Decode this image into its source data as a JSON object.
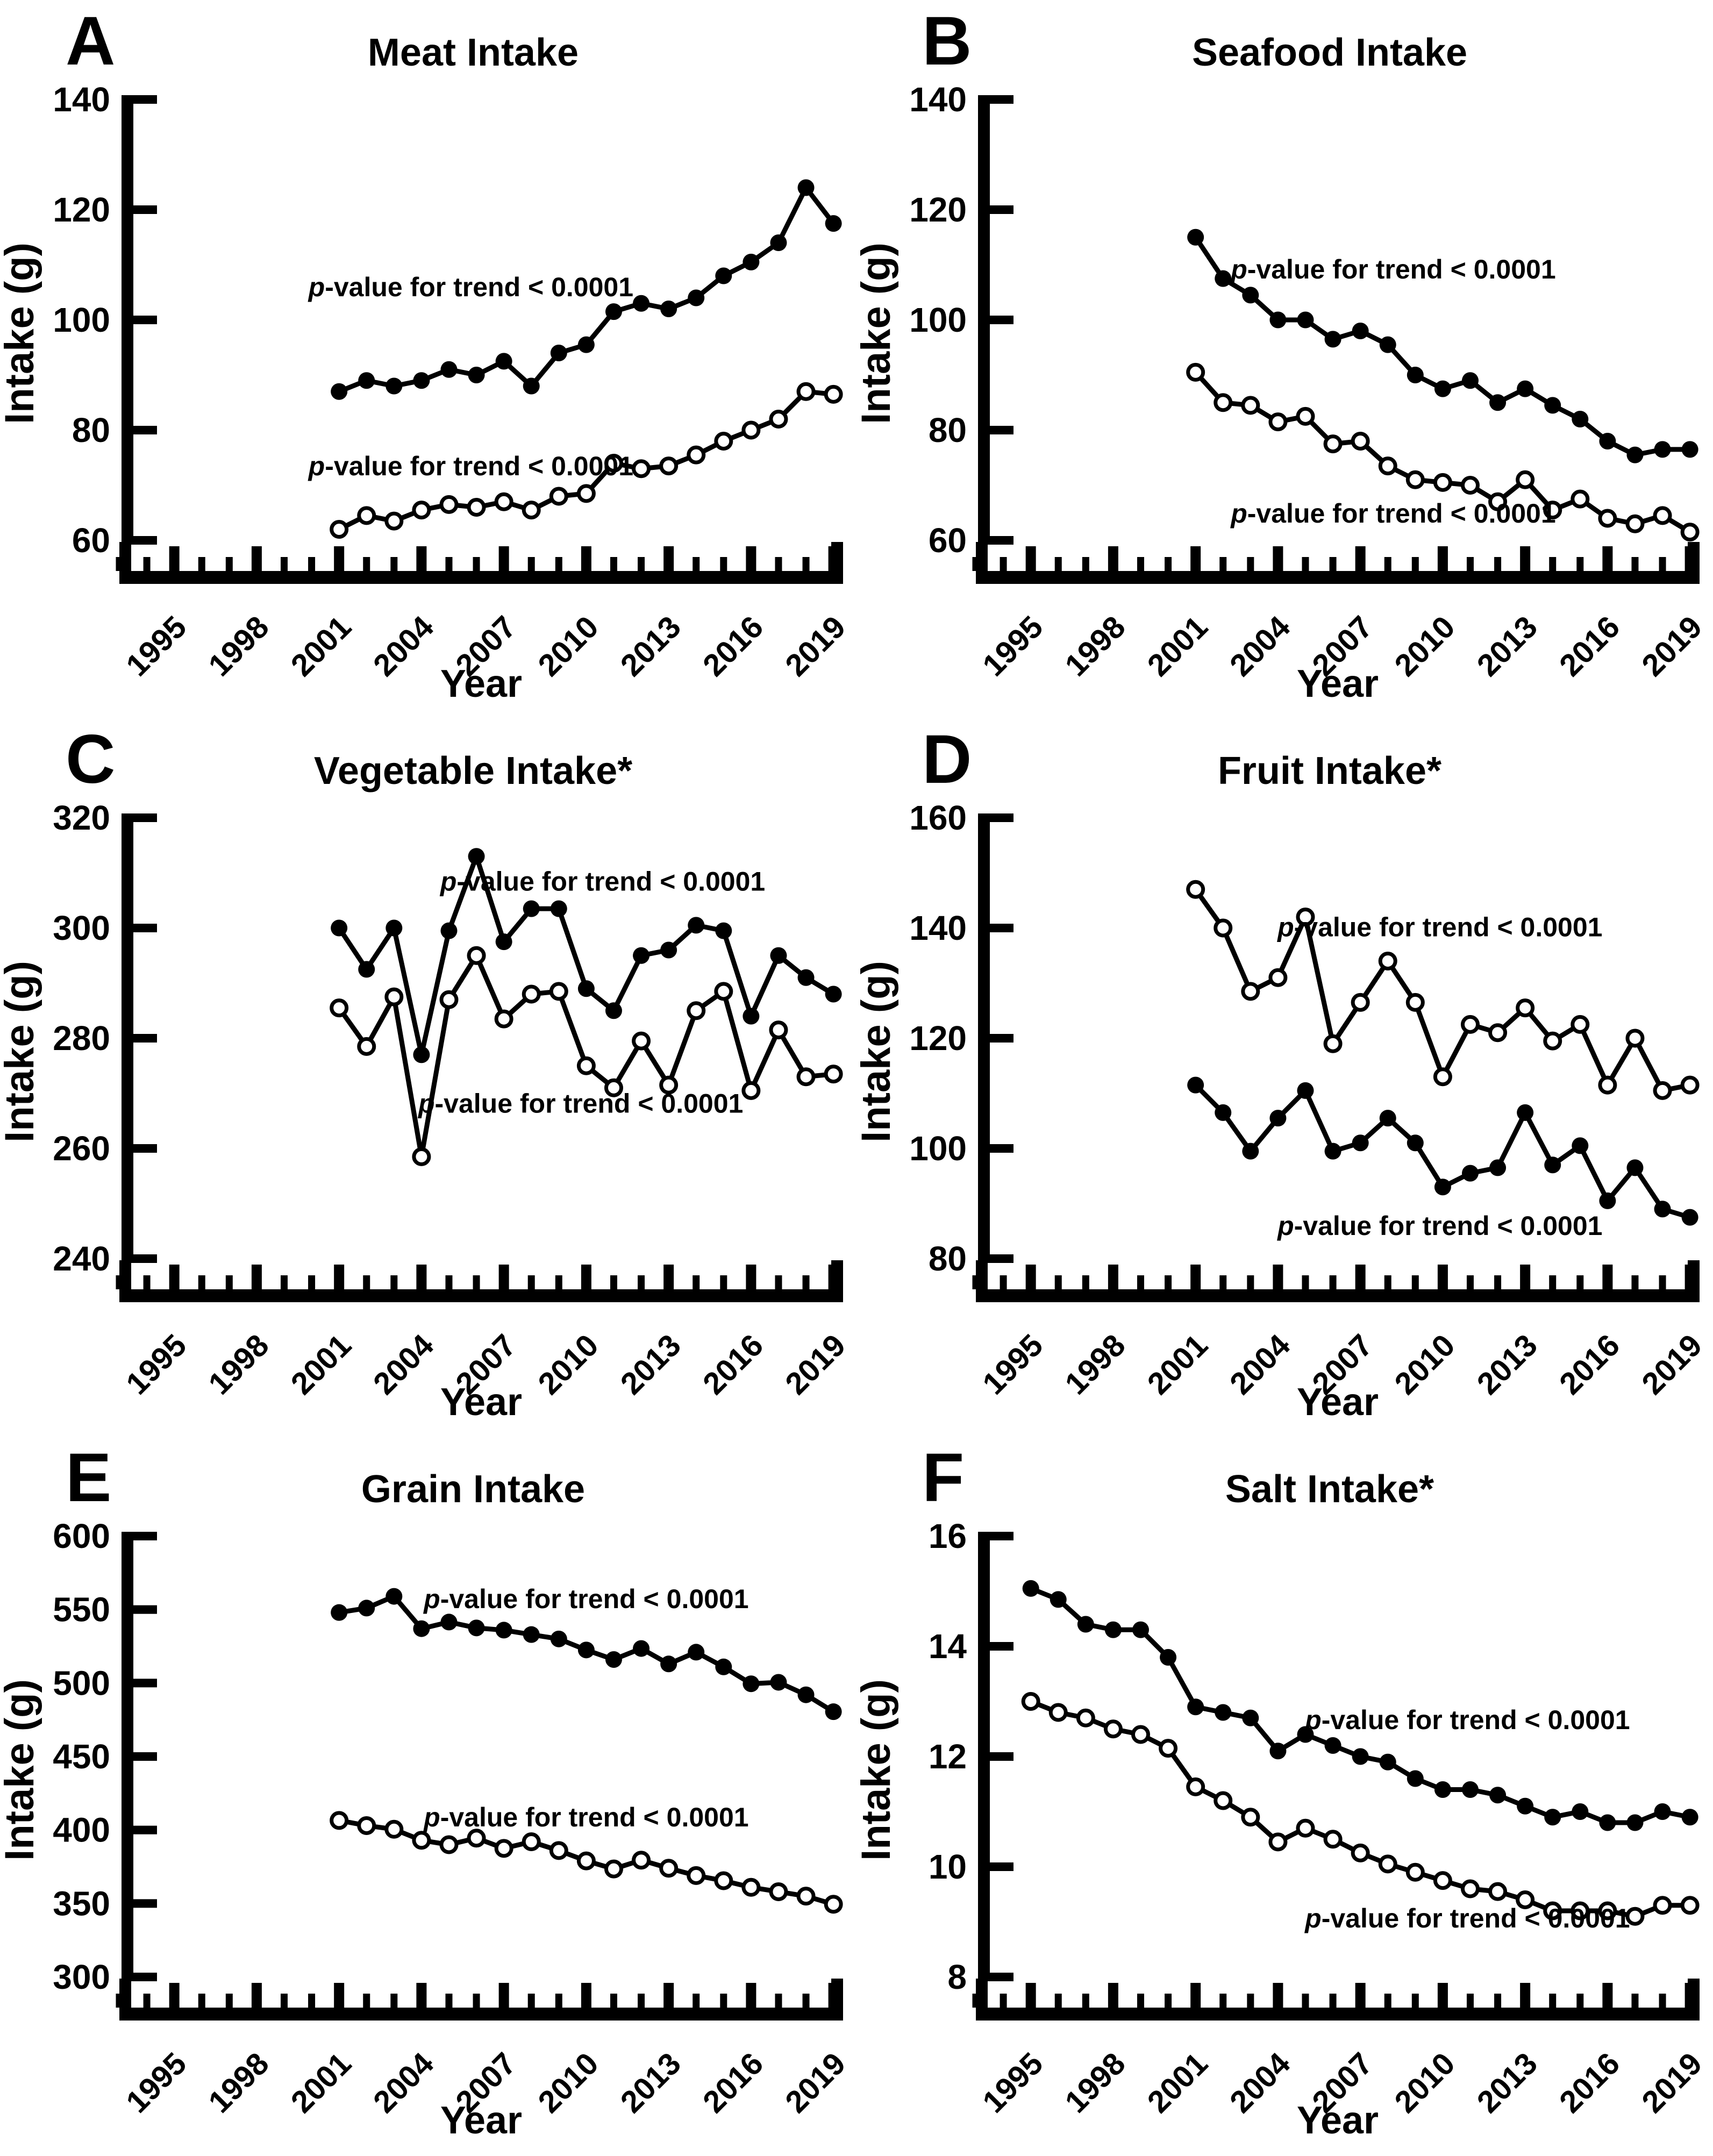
{
  "page": {
    "background_color": "#ffffff",
    "foreground_color": "#000000",
    "description_series_filled": "filled-circle-series",
    "description_series_open": "open-circle-series"
  },
  "chart_data": [
    {
      "type": "line",
      "panel": "A",
      "title": "Meat Intake",
      "xlabel": "Year",
      "ylabel": "Intake (g)",
      "ylim": [
        60,
        140
      ],
      "yticks": [
        60,
        80,
        100,
        120,
        140
      ],
      "xlim": [
        1993.0,
        2019.35
      ],
      "xticks": [
        1995,
        1998,
        2001,
        2004,
        2007,
        2010,
        2013,
        2016,
        2019
      ],
      "years": [
        2001,
        2002,
        2003,
        2004,
        2005,
        2006,
        2007,
        2008,
        2009,
        2010,
        2011,
        2012,
        2013,
        2014,
        2015,
        2016,
        2017,
        2018,
        2019
      ],
      "series": [
        {
          "name": "filled-circle-series",
          "marker": "filled",
          "values": [
            87,
            89,
            88,
            89,
            91,
            90,
            92.5,
            88,
            94,
            95.5,
            101.5,
            103,
            102,
            104,
            108,
            110.5,
            114,
            124,
            117.5
          ],
          "p_annotation": {
            "text_p": "p",
            "text_rest": "-value for trend < 0.0001",
            "x": 2005.8,
            "y": 104.3
          }
        },
        {
          "name": "open-circle-series",
          "marker": "open",
          "values": [
            62,
            64.5,
            63.5,
            65.5,
            66.5,
            66,
            67,
            65.5,
            68,
            68.5,
            74,
            73,
            73.5,
            75.5,
            78,
            80,
            82,
            87,
            86.5
          ],
          "p_annotation": {
            "text_p": "p",
            "text_rest": "-value for trend < 0.0001",
            "x": 2005.8,
            "y": 71.8
          }
        }
      ]
    },
    {
      "type": "line",
      "panel": "B",
      "title": "Seafood Intake",
      "xlabel": "Year",
      "ylabel": "Intake (g)",
      "ylim": [
        60,
        140
      ],
      "yticks": [
        60,
        80,
        100,
        120,
        140
      ],
      "xlim": [
        1993.0,
        2019.35
      ],
      "xticks": [
        1995,
        1998,
        2001,
        2004,
        2007,
        2010,
        2013,
        2016,
        2019
      ],
      "years": [
        2001,
        2002,
        2003,
        2004,
        2005,
        2006,
        2007,
        2008,
        2009,
        2010,
        2011,
        2012,
        2013,
        2014,
        2015,
        2016,
        2017,
        2018,
        2019
      ],
      "series": [
        {
          "name": "filled-circle-series",
          "marker": "filled",
          "values": [
            115,
            107.5,
            104.5,
            100,
            100,
            96.5,
            98,
            95.5,
            90,
            87.5,
            89,
            85,
            87.5,
            84.5,
            82,
            78,
            75.5,
            76.5,
            76.5
          ],
          "p_annotation": {
            "text_p": "p",
            "text_rest": "-value for trend < 0.0001",
            "x": 2008.2,
            "y": 107.5
          }
        },
        {
          "name": "open-circle-series",
          "marker": "open",
          "values": [
            90.5,
            85,
            84.5,
            81.5,
            82.5,
            77.5,
            78,
            73.5,
            71,
            70.5,
            70,
            67,
            71,
            65.5,
            67.5,
            64,
            63,
            64.5,
            61.5
          ],
          "p_annotation": {
            "text_p": "p",
            "text_rest": "-value for trend < 0.0001",
            "x": 2008.2,
            "y": 63.2
          }
        }
      ]
    },
    {
      "type": "line",
      "panel": "C",
      "title": "Vegetable Intake*",
      "xlabel": "Year",
      "ylabel": "Intake (g)",
      "ylim": [
        240,
        320
      ],
      "yticks": [
        240,
        260,
        280,
        300,
        320
      ],
      "xlim": [
        1993.0,
        2019.35
      ],
      "xticks": [
        1995,
        1998,
        2001,
        2004,
        2007,
        2010,
        2013,
        2016,
        2019
      ],
      "years": [
        2001,
        2002,
        2003,
        2004,
        2005,
        2006,
        2007,
        2008,
        2009,
        2010,
        2011,
        2012,
        2013,
        2014,
        2015,
        2016,
        2017,
        2018,
        2019
      ],
      "series": [
        {
          "name": "filled-circle-series",
          "marker": "filled",
          "values": [
            300,
            292.5,
            300,
            277,
            299.5,
            313,
            297.5,
            303.5,
            303.5,
            289,
            285,
            295,
            296,
            300.5,
            299.5,
            284,
            295,
            291,
            288
          ],
          "p_annotation": {
            "text_p": "p",
            "text_rest": "-value for trend < 0.0001",
            "x": 2010.6,
            "y": 306.8
          }
        },
        {
          "name": "open-circle-series",
          "marker": "open",
          "values": [
            285.5,
            278.5,
            287.5,
            258.5,
            287,
            295,
            283.5,
            288,
            288.5,
            275,
            271,
            279.5,
            271.5,
            285,
            288.5,
            270.5,
            281.5,
            273,
            273.5
          ],
          "p_annotation": {
            "text_p": "p",
            "text_rest": "-value for trend < 0.0001",
            "x": 2009.8,
            "y": 266.5
          }
        }
      ]
    },
    {
      "type": "line",
      "panel": "D",
      "title": "Fruit Intake*",
      "xlabel": "Year",
      "ylabel": "Intake (g)",
      "ylim": [
        80,
        160
      ],
      "yticks": [
        80,
        100,
        120,
        140,
        160
      ],
      "xlim": [
        1993.0,
        2019.35
      ],
      "xticks": [
        1995,
        1998,
        2001,
        2004,
        2007,
        2010,
        2013,
        2016,
        2019
      ],
      "years": [
        2001,
        2002,
        2003,
        2004,
        2005,
        2006,
        2007,
        2008,
        2009,
        2010,
        2011,
        2012,
        2013,
        2014,
        2015,
        2016,
        2017,
        2018,
        2019
      ],
      "series": [
        {
          "name": "filled-circle-series",
          "marker": "filled",
          "values": [
            111.5,
            106.5,
            99.5,
            105.5,
            110.5,
            99.5,
            101,
            105.5,
            101,
            93,
            95.5,
            96.5,
            106.5,
            97,
            100.5,
            90.5,
            96.5,
            89,
            87.5
          ],
          "p_annotation": {
            "text_p": "p",
            "text_rest": "-value for trend < 0.0001",
            "x": 2009.9,
            "y": 84.3
          }
        },
        {
          "name": "open-circle-series",
          "marker": "open",
          "values": [
            147,
            140,
            128.5,
            131,
            142,
            119,
            126.5,
            134,
            126.5,
            113,
            122.5,
            121,
            125.5,
            119.5,
            122.5,
            111.5,
            120,
            110.5,
            111.5
          ],
          "p_annotation": {
            "text_p": "p",
            "text_rest": "-value for trend < 0.0001",
            "x": 2009.9,
            "y": 138.5
          }
        }
      ]
    },
    {
      "type": "line",
      "panel": "E",
      "title": "Grain Intake",
      "xlabel": "Year",
      "ylabel": "Intake (g)",
      "ylim": [
        300,
        600
      ],
      "yticks": [
        300,
        350,
        400,
        450,
        500,
        550,
        600
      ],
      "xlim": [
        1993.0,
        2019.35
      ],
      "xticks": [
        1995,
        1998,
        2001,
        2004,
        2007,
        2010,
        2013,
        2016,
        2019
      ],
      "years": [
        2001,
        2002,
        2003,
        2004,
        2005,
        2006,
        2007,
        2008,
        2009,
        2010,
        2011,
        2012,
        2013,
        2014,
        2015,
        2016,
        2017,
        2018,
        2019
      ],
      "series": [
        {
          "name": "filled-circle-series",
          "marker": "filled",
          "values": [
            548,
            551,
            559,
            537,
            541.5,
            537.5,
            536,
            533,
            530,
            522.5,
            516,
            523.5,
            513,
            521,
            511,
            499.5,
            500.5,
            492,
            480.5
          ],
          "p_annotation": {
            "text_p": "p",
            "text_rest": "-value for trend < 0.0001",
            "x": 2010.0,
            "y": 551
          }
        },
        {
          "name": "open-circle-series",
          "marker": "open",
          "values": [
            406.5,
            403,
            400.5,
            393,
            390,
            394.5,
            387.5,
            392,
            386,
            379,
            373.5,
            379.5,
            374,
            369,
            365.5,
            361,
            358,
            355,
            349.5
          ],
          "p_annotation": {
            "text_p": "p",
            "text_rest": "-value for trend < 0.0001",
            "x": 2010.0,
            "y": 402.5
          }
        }
      ]
    },
    {
      "type": "line",
      "panel": "F",
      "title": "Salt Intake*",
      "xlabel": "Year",
      "ylabel": "Intake (g)",
      "ylim": [
        8,
        16
      ],
      "yticks": [
        8,
        10,
        12,
        14,
        16
      ],
      "xlim": [
        1993.0,
        2019.35
      ],
      "xticks": [
        1995,
        1998,
        2001,
        2004,
        2007,
        2010,
        2013,
        2016,
        2019
      ],
      "years": [
        1995,
        1996,
        1997,
        1998,
        1999,
        2000,
        2001,
        2002,
        2003,
        2004,
        2005,
        2006,
        2007,
        2008,
        2009,
        2010,
        2011,
        2012,
        2013,
        2014,
        2015,
        2016,
        2017,
        2018,
        2019
      ],
      "series": [
        {
          "name": "filled-circle-series",
          "marker": "filled",
          "values": [
            15.05,
            14.85,
            14.4,
            14.3,
            14.3,
            13.8,
            12.9,
            12.8,
            12.7,
            12.1,
            12.4,
            12.2,
            12.0,
            11.9,
            11.6,
            11.4,
            11.4,
            11.3,
            11.1,
            10.9,
            11.0,
            10.8,
            10.8,
            11.0,
            10.9
          ],
          "p_annotation": {
            "text_p": "p",
            "text_rest": "-value for trend < 0.0001",
            "x": 2010.9,
            "y": 12.5
          }
        },
        {
          "name": "open-circle-series",
          "marker": "open",
          "values": [
            13.0,
            12.8,
            12.7,
            12.5,
            12.4,
            12.15,
            11.45,
            11.2,
            10.9,
            10.45,
            10.7,
            10.5,
            10.25,
            10.05,
            9.9,
            9.75,
            9.6,
            9.55,
            9.4,
            9.2,
            9.2,
            9.2,
            9.1,
            9.3,
            9.3
          ],
          "p_annotation": {
            "text_p": "p",
            "text_rest": "-value for trend < 0.0001",
            "x": 2010.9,
            "y": 8.9
          }
        }
      ]
    }
  ]
}
